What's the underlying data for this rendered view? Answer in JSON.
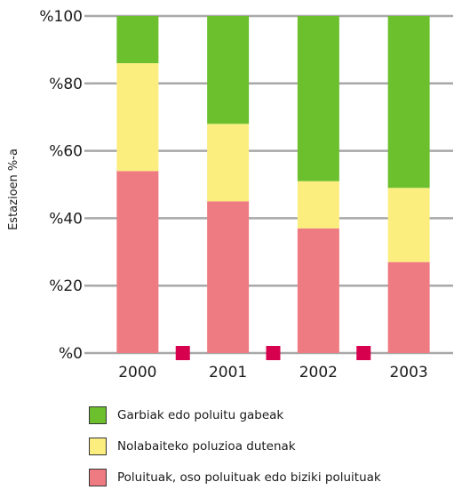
{
  "chart_data": {
    "type": "bar",
    "stacked": true,
    "categories": [
      "2000",
      "2001",
      "2002",
      "2003"
    ],
    "series": [
      {
        "name": "Poluituak, oso poluituak edo biziki poluituak",
        "color": "#ef7b82",
        "values": [
          54,
          45,
          37,
          27
        ]
      },
      {
        "name": "Nolabaiteko poluzioa dutenak",
        "color": "#fbee7f",
        "values": [
          32,
          23,
          14,
          22
        ]
      },
      {
        "name": "Garbiak edo poluitu gabeak",
        "color": "#6cc02e",
        "values": [
          14,
          32,
          49,
          51
        ]
      }
    ],
    "ylabel": "Estazioen %-a",
    "yticks": [
      "%0",
      "%20",
      "%40",
      "%60",
      "%80",
      "%100"
    ],
    "ylim": [
      0,
      100
    ],
    "grid": true,
    "legend_position": "bottom",
    "marker_color": "#d6004f",
    "legend_order": [
      2,
      1,
      0
    ]
  }
}
